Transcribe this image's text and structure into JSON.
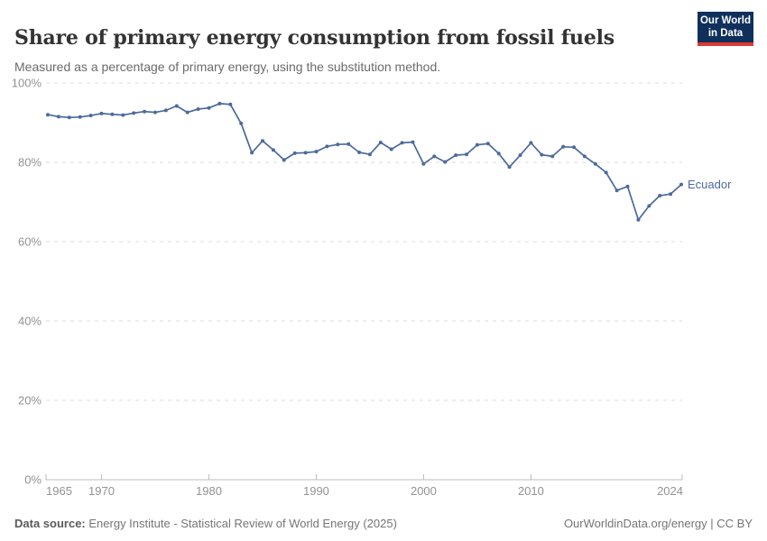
{
  "header": {
    "title": "Share of primary energy consumption from fossil fuels",
    "subtitle": "Measured as a percentage of primary energy, using the substitution method."
  },
  "logo": {
    "line1": "Our World",
    "line2": "in Data",
    "bg_color": "#10305c",
    "accent_color": "#d93a32"
  },
  "chart_data": {
    "type": "line",
    "title": "Share of primary energy consumption from fossil fuels",
    "entity": "Ecuador",
    "unit": "%",
    "line_color": "#4C6A9C",
    "grid": true,
    "legend_position": "right-of-line-end",
    "ylim": [
      0,
      100
    ],
    "yticks": [
      0,
      20,
      40,
      60,
      80,
      100
    ],
    "ytick_suffix": "%",
    "xticks": [
      1965,
      1970,
      1980,
      1990,
      2000,
      2010,
      2024
    ],
    "xlabel": "",
    "ylabel": "",
    "series": [
      {
        "name": "Ecuador",
        "x": [
          1965,
          1966,
          1967,
          1968,
          1969,
          1970,
          1971,
          1972,
          1973,
          1974,
          1975,
          1976,
          1977,
          1978,
          1979,
          1980,
          1981,
          1982,
          1983,
          1984,
          1985,
          1986,
          1987,
          1988,
          1989,
          1990,
          1991,
          1992,
          1993,
          1994,
          1995,
          1996,
          1997,
          1998,
          1999,
          2000,
          2001,
          2002,
          2003,
          2004,
          2005,
          2006,
          2007,
          2008,
          2009,
          2010,
          2011,
          2012,
          2013,
          2014,
          2015,
          2016,
          2017,
          2018,
          2019,
          2020,
          2021,
          2022,
          2023,
          2024
        ],
        "values": [
          92.0,
          91.5,
          91.3,
          91.4,
          91.8,
          92.3,
          92.1,
          91.9,
          92.4,
          92.8,
          92.6,
          93.1,
          94.2,
          92.6,
          93.4,
          93.7,
          94.8,
          94.6,
          89.8,
          82.4,
          85.4,
          83.1,
          80.6,
          82.3,
          82.4,
          82.7,
          84.0,
          84.5,
          84.6,
          82.5,
          82.0,
          85.0,
          83.3,
          84.9,
          85.1,
          79.6,
          81.5,
          80.1,
          81.8,
          82.0,
          84.4,
          84.7,
          82.2,
          78.8,
          81.8,
          84.9,
          81.9,
          81.5,
          83.9,
          83.8,
          81.5,
          79.6,
          77.4,
          72.9,
          73.9,
          65.5,
          69.0,
          71.6,
          72.0,
          74.4
        ]
      }
    ]
  },
  "footer": {
    "source_label": "Data source:",
    "source": "Energy Institute - Statistical Review of World Energy (2025)",
    "credit": "OurWorldinData.org/energy | CC BY"
  }
}
